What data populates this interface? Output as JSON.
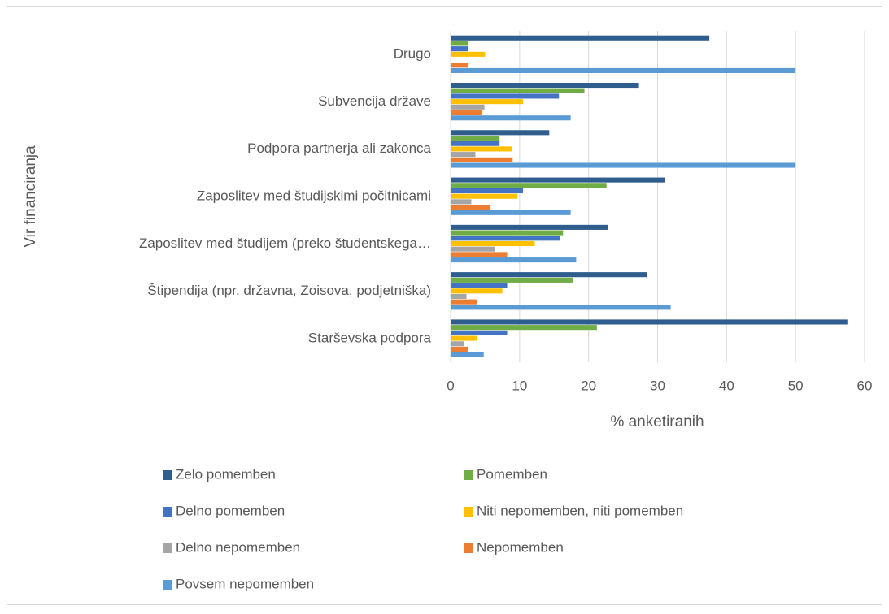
{
  "chart_data": {
    "type": "barh",
    "xlabel": "% anketiranih",
    "ylabel": "Vir financiranja",
    "categories": [
      "Drugo",
      "Subvencija države",
      "Podpora partnerja ali zakonca",
      "Zaposlitev med študijskimi počitnicami",
      "Zaposlitev med študijem (preko študentskega…",
      "Štipendija (npr. državna, Zoisova, podjetniška)",
      "Starševska podpora"
    ],
    "series": [
      {
        "name": "Zelo pomemben",
        "color": "#2e5d8e",
        "values": [
          37.5,
          27.3,
          14.3,
          31,
          22.8,
          28.5,
          57.5
        ]
      },
      {
        "name": "Pomemben",
        "color": "#70ad47",
        "values": [
          2.5,
          19.4,
          7.1,
          22.6,
          16.3,
          17.7,
          21.2
        ]
      },
      {
        "name": "Delno pomemben",
        "color": "#4472c4",
        "values": [
          2.5,
          15.7,
          7.1,
          10.5,
          15.9,
          8.2,
          8.2
        ]
      },
      {
        "name": "Niti nepomemben, niti pomemben",
        "color": "#ffc000",
        "values": [
          5,
          10.5,
          8.9,
          9.7,
          12.2,
          7.5,
          3.9
        ]
      },
      {
        "name": "Delno nepomemben",
        "color": "#a5a5a5",
        "values": [
          0,
          4.9,
          3.6,
          3,
          6.4,
          2.3,
          1.9
        ]
      },
      {
        "name": "Nepomemben",
        "color": "#ed7d31",
        "values": [
          2.5,
          4.6,
          9,
          5.7,
          8.2,
          3.8,
          2.5
        ]
      },
      {
        "name": "Povsem nepomemben",
        "color": "#5b9bd5",
        "values": [
          50,
          17.4,
          50,
          17.4,
          18.2,
          31.9,
          4.8
        ]
      }
    ],
    "xlim": [
      0,
      60
    ],
    "xticks": [
      0,
      10,
      20,
      30,
      40,
      50,
      60
    ],
    "grid": true
  }
}
